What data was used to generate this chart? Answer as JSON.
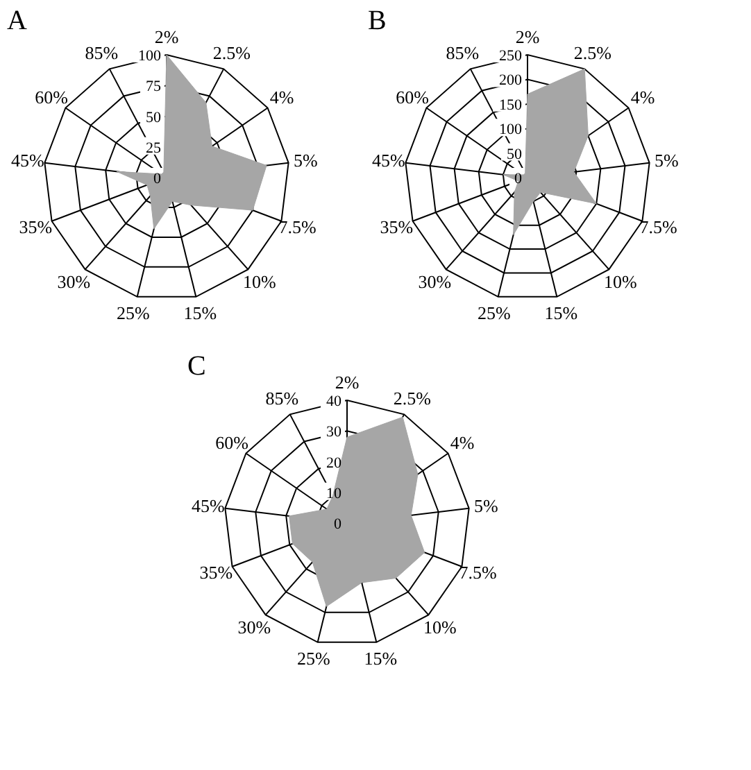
{
  "chart_data": [
    {
      "type": "radar",
      "title": "A",
      "categories": [
        "2%",
        "2.5%",
        "4%",
        "5%",
        "7.5%",
        "10%",
        "15%",
        "25%",
        "30%",
        "35%",
        "45%",
        "60%",
        "85%"
      ],
      "ylim": [
        0,
        100
      ],
      "yticks": [
        0,
        25,
        50,
        75,
        100
      ],
      "grid": true,
      "series": [
        {
          "color": "#a6a6a6",
          "values": [
            100,
            69,
            45,
            82,
            75,
            30,
            20,
            43,
            20,
            17,
            41,
            5,
            5
          ]
        }
      ]
    },
    {
      "type": "radar",
      "title": "B",
      "categories": [
        "2%",
        "2.5%",
        "4%",
        "5%",
        "7.5%",
        "10%",
        "15%",
        "25%",
        "30%",
        "35%",
        "45%",
        "60%",
        "85%"
      ],
      "ylim": [
        0,
        250
      ],
      "yticks": [
        0,
        50,
        100,
        150,
        200,
        250
      ],
      "grid": true,
      "series": [
        {
          "color": "#a6a6a6",
          "values": [
            170,
            250,
            150,
            95,
            150,
            40,
            50,
            120,
            40,
            20,
            50,
            10,
            10
          ]
        }
      ]
    },
    {
      "type": "radar",
      "title": "C",
      "categories": [
        "2%",
        "2.5%",
        "4%",
        "5%",
        "7.5%",
        "10%",
        "15%",
        "25%",
        "30%",
        "35%",
        "45%",
        "60%",
        "85%"
      ],
      "ylim": [
        0,
        40
      ],
      "yticks": [
        0,
        10,
        20,
        30,
        40
      ],
      "grid": true,
      "series": [
        {
          "color": "#a6a6a6",
          "values": [
            28,
            39,
            28,
            21,
            27,
            24,
            20,
            28,
            17,
            19,
            19,
            8,
            10
          ]
        }
      ]
    }
  ]
}
